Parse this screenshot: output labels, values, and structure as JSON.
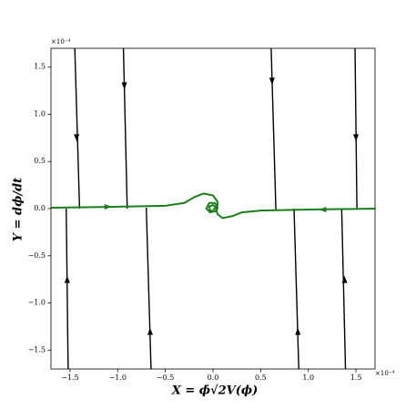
{
  "chart_data": {
    "type": "line",
    "x_label": "X = ϕ̇√2V(ϕ)",
    "y_label": "Y = dϕ/dt",
    "x_offset_label": "×10⁻⁴",
    "y_offset_label": "×10⁻⁴",
    "xlim": [
      -1.7,
      1.7
    ],
    "ylim": [
      -1.7,
      1.7
    ],
    "xticks": [
      {
        "value": -1.5,
        "label": "−1.5"
      },
      {
        "value": -1.0,
        "label": "−1.0"
      },
      {
        "value": -0.5,
        "label": "−0.5"
      },
      {
        "value": 0.0,
        "label": "0.0"
      },
      0.5,
      {
        "value": 1.0,
        "label": "1.0"
      },
      1.5
    ],
    "yticks": [
      {
        "value": -1.5,
        "label": "−1.5"
      },
      {
        "value": -1.0,
        "label": "−1.0"
      },
      {
        "value": -0.5,
        "label": "−0.5"
      },
      {
        "value": 0.0,
        "label": "0.0"
      },
      0.5,
      {
        "value": 1.0,
        "label": "1.0"
      },
      1.5
    ],
    "series": [
      {
        "color": "#000000",
        "x": [
          -1.45,
          -1.4
        ],
        "y": [
          1.7,
          0.0
        ],
        "arrows": {
          "x": [
            -1.43
          ],
          "y": [
            0.75
          ]
        }
      },
      {
        "color": "#000000",
        "x": [
          -0.94,
          -0.9
        ],
        "y": [
          1.7,
          0.0
        ],
        "arrows": {
          "x": [
            -0.93
          ],
          "y": [
            1.3
          ]
        }
      },
      {
        "color": "#000000",
        "x": [
          0.61,
          0.66
        ],
        "y": [
          1.7,
          -0.02
        ],
        "arrows": {
          "x": [
            0.62
          ],
          "y": [
            1.35
          ]
        }
      },
      {
        "color": "#000000",
        "x": [
          1.49,
          1.51
        ],
        "y": [
          1.7,
          0.0
        ],
        "arrows": {
          "x": [
            1.5
          ],
          "y": [
            0.75
          ]
        }
      },
      {
        "color": "#000000",
        "x": [
          -1.52,
          -1.54
        ],
        "y": [
          -1.7,
          0.0
        ],
        "arrows": {
          "x": [
            -1.53
          ],
          "y": [
            -0.75
          ]
        }
      },
      {
        "color": "#000000",
        "x": [
          -0.65,
          -0.7
        ],
        "y": [
          -1.7,
          0.01
        ],
        "arrows": {
          "x": [
            -0.66
          ],
          "y": [
            -1.3
          ]
        }
      },
      {
        "color": "#000000",
        "x": [
          0.9,
          0.85
        ],
        "y": [
          -1.7,
          0.0
        ],
        "arrows": {
          "x": [
            0.89
          ],
          "y": [
            -1.3
          ]
        }
      },
      {
        "color": "#000000",
        "x": [
          1.39,
          1.35
        ],
        "y": [
          -1.7,
          0.0
        ],
        "arrows": {
          "x": [
            1.38
          ],
          "y": [
            -0.75
          ]
        }
      },
      {
        "color": "#1a7f1a",
        "x": [
          -1.7,
          -1.0,
          -0.5,
          -0.3,
          -0.2,
          -0.1,
          0.0,
          0.05,
          0.04,
          -0.03,
          -0.07,
          -0.04,
          0.02,
          0.05,
          0.02,
          -0.03,
          -0.04,
          0.0,
          0.03,
          0.0
        ],
        "y": [
          0.01,
          0.02,
          0.03,
          0.06,
          0.12,
          0.16,
          0.14,
          0.07,
          -0.02,
          -0.04,
          0.0,
          0.06,
          0.06,
          0.01,
          -0.03,
          -0.02,
          0.02,
          0.04,
          0.01,
          -0.01
        ],
        "arrows": {
          "x": [
            -1.1
          ],
          "y": [
            0.02
          ]
        }
      },
      {
        "color": "#1a7f1a",
        "x": [
          1.7,
          1.0,
          0.5,
          0.3,
          0.2,
          0.1,
          0.05,
          0.03
        ],
        "y": [
          0.0,
          -0.01,
          -0.02,
          -0.04,
          -0.08,
          -0.1,
          -0.06,
          -0.01
        ],
        "arrows": {
          "x": [
            1.15
          ],
          "y": [
            -0.01
          ]
        }
      }
    ]
  }
}
